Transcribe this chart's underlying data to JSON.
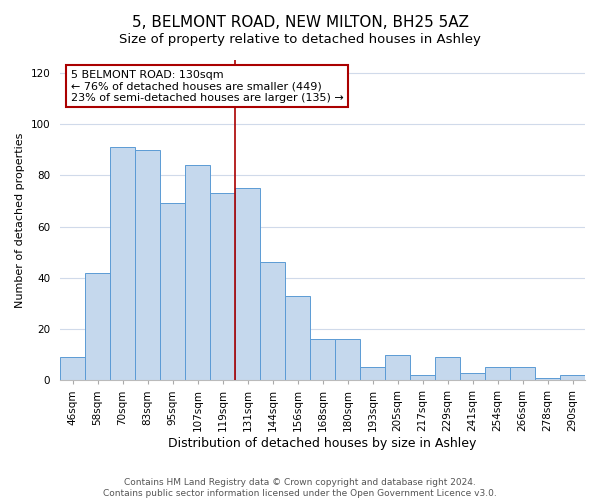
{
  "title": "5, BELMONT ROAD, NEW MILTON, BH25 5AZ",
  "subtitle": "Size of property relative to detached houses in Ashley",
  "xlabel": "Distribution of detached houses by size in Ashley",
  "ylabel": "Number of detached properties",
  "categories": [
    "46sqm",
    "58sqm",
    "70sqm",
    "83sqm",
    "95sqm",
    "107sqm",
    "119sqm",
    "131sqm",
    "144sqm",
    "156sqm",
    "168sqm",
    "180sqm",
    "193sqm",
    "205sqm",
    "217sqm",
    "229sqm",
    "241sqm",
    "254sqm",
    "266sqm",
    "278sqm",
    "290sqm"
  ],
  "values": [
    9,
    42,
    91,
    90,
    69,
    84,
    73,
    75,
    46,
    33,
    16,
    16,
    5,
    10,
    2,
    9,
    3,
    5,
    5,
    1,
    2
  ],
  "bar_color": "#c5d8ed",
  "bar_edge_color": "#5b9bd5",
  "vline_index": 7,
  "annotation_line1": "5 BELMONT ROAD: 130sqm",
  "annotation_line2": "← 76% of detached houses are smaller (449)",
  "annotation_line3": "23% of semi-detached houses are larger (135) →",
  "annotation_box_color": "#ffffff",
  "annotation_box_edge_color": "#aa0000",
  "vline_color": "#aa0000",
  "ylim": [
    0,
    125
  ],
  "yticks": [
    0,
    20,
    40,
    60,
    80,
    100,
    120
  ],
  "grid_color": "#d0daea",
  "footer1": "Contains HM Land Registry data © Crown copyright and database right 2024.",
  "footer2": "Contains public sector information licensed under the Open Government Licence v3.0.",
  "title_fontsize": 11,
  "subtitle_fontsize": 9.5,
  "xlabel_fontsize": 9,
  "ylabel_fontsize": 8,
  "tick_fontsize": 7.5,
  "annotation_fontsize": 8,
  "footer_fontsize": 6.5
}
